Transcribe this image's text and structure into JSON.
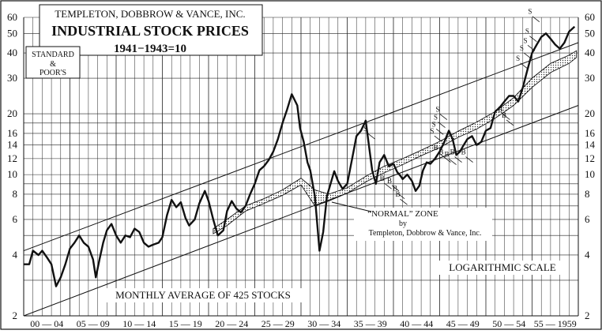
{
  "chart_data": {
    "type": "line",
    "title_lines": [
      "TEMPLETON, DOBBROW & VANCE, INC.",
      "INDUSTRIAL STOCK PRICES",
      "1941−1943=10"
    ],
    "source_box": [
      "STANDARD",
      "&",
      "POOR'S"
    ],
    "caption": "MONTHLY AVERAGE OF 425 STOCKS",
    "scale_label": "LOGARITHMIC SCALE",
    "zone_label": [
      "“NORMAL” ZONE",
      "by",
      "Templeton, Dobbrow & Vance, Inc."
    ],
    "y_scale": "log",
    "ylim": [
      2,
      60
    ],
    "y_ticks": [
      2,
      4,
      6,
      8,
      10,
      12,
      14,
      16,
      20,
      30,
      40,
      50,
      60
    ],
    "y_tick_labels": [
      "2",
      "4",
      "6",
      "8",
      "10",
      "12",
      "14",
      "16",
      "20",
      "30",
      "40",
      "50",
      "60"
    ],
    "x_range": [
      1900,
      1960
    ],
    "x_tick_labels": [
      "00 — 04",
      "05 — 09",
      "10 — 14",
      "15 — 19",
      "20 — 24",
      "25 — 29",
      "30 — 34",
      "35 — 39",
      "40 — 44",
      "45 — 49",
      "50 — 54",
      "55 — 1959"
    ],
    "grid": true,
    "series": [
      {
        "type": "line",
        "x": [
          1900.0,
          1900.6,
          1901.0,
          1901.6,
          1902.0,
          1902.5,
          1903.0,
          1903.5,
          1904.0,
          1904.5,
          1905.0,
          1905.5,
          1906.0,
          1906.5,
          1907.0,
          1907.5,
          1907.8,
          1908.2,
          1908.6,
          1909.0,
          1909.5,
          1910.0,
          1910.5,
          1911.0,
          1911.5,
          1912.0,
          1912.5,
          1913.0,
          1913.5,
          1914.0,
          1914.6,
          1915.0,
          1915.5,
          1916.0,
          1916.5,
          1917.0,
          1917.5,
          1917.9,
          1918.5,
          1919.0,
          1919.6,
          1920.0,
          1920.5,
          1921.0,
          1921.6,
          1922.0,
          1922.5,
          1923.0,
          1923.5,
          1924.0,
          1924.5,
          1925.0,
          1925.5,
          1926.0,
          1926.5,
          1927.0,
          1927.5,
          1928.0,
          1928.5,
          1929.0,
          1929.6,
          1929.9,
          1930.3,
          1930.7,
          1931.0,
          1931.5,
          1932.0,
          1932.4,
          1932.8,
          1933.2,
          1933.6,
          1934.0,
          1934.5,
          1935.0,
          1935.5,
          1936.0,
          1936.5,
          1937.0,
          1937.3,
          1937.7,
          1938.1,
          1938.5,
          1939.0,
          1939.5,
          1940.0,
          1940.4,
          1940.8,
          1941.0,
          1941.5,
          1942.0,
          1942.4,
          1942.8,
          1943.2,
          1943.6,
          1944.0,
          1944.5,
          1945.0,
          1945.5,
          1946.0,
          1946.4,
          1946.8,
          1947.2,
          1947.6,
          1948.0,
          1948.5,
          1949.0,
          1949.5,
          1950.0,
          1950.5,
          1951.0,
          1951.5,
          1952.0,
          1952.5,
          1953.0,
          1953.5,
          1954.0,
          1954.5,
          1955.0,
          1955.5,
          1956.0,
          1956.5,
          1957.0,
          1957.5,
          1958.0,
          1958.5,
          1959.0,
          1959.6
        ],
        "y": [
          3.6,
          3.6,
          4.2,
          4.0,
          4.2,
          3.9,
          3.6,
          2.8,
          3.1,
          3.6,
          4.3,
          4.6,
          5.0,
          4.6,
          4.4,
          3.8,
          3.1,
          3.8,
          4.6,
          5.3,
          5.7,
          5.0,
          4.6,
          5.0,
          4.9,
          5.4,
          5.2,
          4.6,
          4.4,
          4.5,
          4.6,
          4.9,
          6.3,
          7.5,
          6.9,
          7.3,
          6.1,
          5.6,
          6.0,
          7.2,
          8.3,
          7.4,
          6.0,
          5.0,
          5.3,
          6.6,
          7.4,
          6.8,
          6.5,
          7.0,
          8.0,
          9.0,
          10.5,
          11.0,
          11.8,
          13.0,
          15.0,
          18.0,
          21.0,
          25.0,
          22.0,
          17.0,
          14.5,
          11.5,
          10.5,
          7.8,
          4.2,
          5.2,
          7.8,
          9.0,
          10.4,
          9.3,
          8.5,
          9.0,
          11.8,
          15.5,
          16.5,
          18.5,
          14.5,
          10.5,
          9.0,
          11.5,
          12.5,
          11.0,
          11.3,
          10.3,
          9.8,
          9.5,
          10.0,
          9.3,
          8.3,
          8.8,
          10.5,
          11.5,
          11.3,
          12.0,
          13.0,
          14.5,
          16.5,
          15.0,
          12.5,
          13.0,
          14.0,
          15.0,
          15.5,
          14.0,
          14.5,
          16.5,
          17.0,
          20.5,
          21.5,
          23.0,
          24.5,
          24.5,
          23.0,
          27.0,
          33.0,
          40.0,
          44.0,
          48.0,
          50.0,
          47.0,
          44.0,
          42.0,
          45.0,
          51.0,
          54.0
        ]
      },
      {
        "type": "band",
        "name": "“NORMAL” ZONE",
        "x": [
          1920.5,
          1922.0,
          1924.0,
          1926.0,
          1928.0,
          1930.0,
          1931.5,
          1933.0,
          1935.0,
          1937.0,
          1939.0,
          1941.0,
          1943.0,
          1945.0,
          1947.0,
          1949.0,
          1951.0,
          1953.0,
          1955.0,
          1957.0,
          1959.0,
          1959.8
        ],
        "upper": [
          5.4,
          6.0,
          7.0,
          7.6,
          8.4,
          9.6,
          8.4,
          8.0,
          8.6,
          9.8,
          11.0,
          12.0,
          13.2,
          14.6,
          16.4,
          18.2,
          20.5,
          24.0,
          30.0,
          35.5,
          39.0,
          41.0
        ],
        "lower": [
          5.1,
          5.6,
          6.6,
          7.2,
          7.9,
          8.9,
          7.0,
          7.4,
          8.1,
          9.2,
          10.2,
          11.2,
          12.4,
          13.6,
          15.3,
          16.8,
          19.0,
          22.0,
          27.0,
          32.0,
          35.5,
          38.0
        ]
      },
      {
        "type": "trendline",
        "x": [
          1900,
          1960
        ],
        "y": [
          4.2,
          45
        ]
      },
      {
        "type": "trendline",
        "x": [
          1900,
          1960
        ],
        "y": [
          2.0,
          22
        ]
      }
    ],
    "markers": [
      {
        "label": "S",
        "x": 1938.0,
        "y": 15.0
      },
      {
        "label": "B",
        "x": 1939.8,
        "y": 8.5
      },
      {
        "label": "B",
        "x": 1940.6,
        "y": 8.3
      },
      {
        "label": "B",
        "x": 1941.2,
        "y": 7.6
      },
      {
        "label": "B",
        "x": 1941.5,
        "y": 7.1
      },
      {
        "label": "S",
        "x": 1945.8,
        "y": 18.7
      },
      {
        "label": "S",
        "x": 1945.6,
        "y": 17.1
      },
      {
        "label": "S",
        "x": 1945.4,
        "y": 15.8
      },
      {
        "label": "S",
        "x": 1945.2,
        "y": 14.6
      },
      {
        "label": "B",
        "x": 1945.6,
        "y": 12.1
      },
      {
        "label": "B",
        "x": 1946.2,
        "y": 11.5
      },
      {
        "label": "B",
        "x": 1946.8,
        "y": 11.2
      },
      {
        "label": "B",
        "x": 1947.4,
        "y": 11.5
      },
      {
        "label": "B",
        "x": 1948.6,
        "y": 11.5
      },
      {
        "label": "B",
        "x": 1952.6,
        "y": 18.7
      },
      {
        "label": "B",
        "x": 1953.0,
        "y": 17.5
      },
      {
        "label": "S",
        "x": 1955.8,
        "y": 57.0
      },
      {
        "label": "S",
        "x": 1955.5,
        "y": 45.5
      },
      {
        "label": "S",
        "x": 1955.3,
        "y": 41.0
      },
      {
        "label": "S",
        "x": 1954.9,
        "y": 37.5
      },
      {
        "label": "S",
        "x": 1954.5,
        "y": 33.5
      }
    ]
  }
}
